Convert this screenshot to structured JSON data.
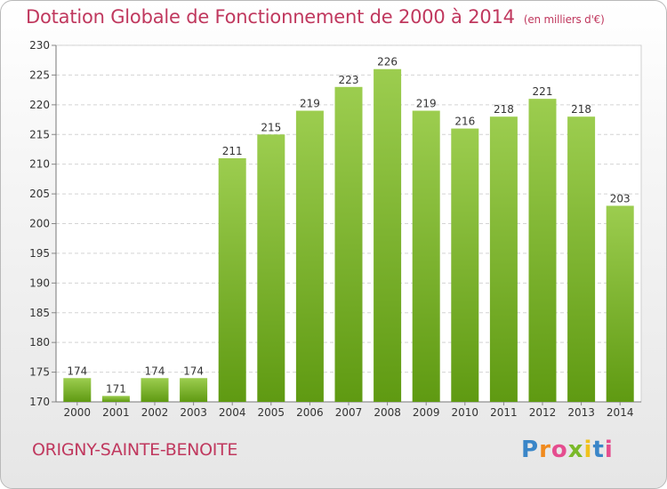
{
  "header": {
    "title": "Dotation Globale de Fonctionnement de 2000 à 2014",
    "unit": "(en milliers d'€)"
  },
  "footer": {
    "commune": "ORIGNY-SAINTE-BENOITE",
    "logo_text": "Proxiti"
  },
  "colors": {
    "title": "#c0385e",
    "bar_light": "#9ccd4f",
    "bar_dark": "#5f9a12"
  },
  "chart_data": {
    "type": "bar",
    "title": "Dotation Globale de Fonctionnement de 2000 à 2014",
    "subtitle": "(en milliers d'€)",
    "categories": [
      "2000",
      "2001",
      "2002",
      "2003",
      "2004",
      "2005",
      "2006",
      "2007",
      "2008",
      "2009",
      "2010",
      "2011",
      "2012",
      "2013",
      "2014"
    ],
    "values": [
      174,
      171,
      174,
      174,
      211,
      215,
      219,
      223,
      226,
      219,
      216,
      218,
      221,
      218,
      203
    ],
    "ylim": [
      170,
      230
    ],
    "yticks": [
      170,
      175,
      180,
      185,
      190,
      195,
      200,
      205,
      210,
      215,
      220,
      225,
      230
    ],
    "grid": true,
    "xlabel": "",
    "ylabel": ""
  }
}
